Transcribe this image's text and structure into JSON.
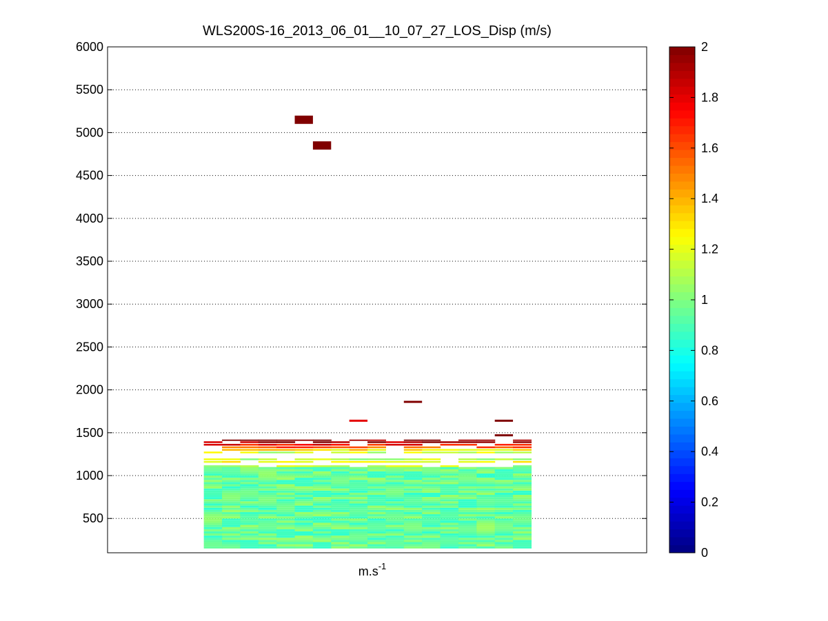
{
  "chart_data": {
    "type": "heatmap",
    "title": "WLS200S-16_2013_06_01__10_07_27_LOS_Disp (m/s)",
    "xlabel": "m.s",
    "xlabel_superscript": "-1",
    "ylabel": "",
    "ylim": [
      100,
      6000
    ],
    "yticks": [
      500,
      1000,
      1500,
      2000,
      2500,
      3000,
      3500,
      4000,
      4500,
      5000,
      5500,
      6000
    ],
    "ygrid": true,
    "xticks": [],
    "colormap": "jet",
    "colorbar": {
      "clim": [
        0,
        2
      ],
      "ticks": [
        0,
        0.2,
        0.4,
        0.6,
        0.8,
        1,
        1.2,
        1.4,
        1.6,
        1.8,
        2
      ],
      "position": "right"
    },
    "columns": 18,
    "column_x_range": [
      5,
      22
    ],
    "x_axis_range": [
      0,
      28
    ],
    "block_rows": [
      {
        "alt": [
          150,
          1100
        ],
        "value": 0.95,
        "note": "dense low-altitude block, values ~0.85-1.05"
      },
      {
        "alt": [
          1100,
          1120
        ],
        "value": 1.1
      },
      {
        "alt": [
          1150,
          1170
        ],
        "value": 1.25
      },
      {
        "alt": [
          1180,
          1200
        ],
        "value": 1.1
      },
      {
        "alt": [
          1260,
          1280
        ],
        "value": 1.15
      },
      {
        "alt": [
          1290,
          1310
        ],
        "value": 1.3
      },
      {
        "alt": [
          1320,
          1340
        ],
        "value": 1.6
      },
      {
        "alt": [
          1350,
          1370
        ],
        "value": 1.75
      },
      {
        "alt": [
          1380,
          1400
        ],
        "value": 1.9
      },
      {
        "alt": [
          1405,
          1420
        ],
        "value": 2.0
      }
    ],
    "isolated_points": [
      {
        "col": 5,
        "alt": 5150,
        "value": 2.0
      },
      {
        "col": 6,
        "alt": 4850,
        "value": 2.0
      },
      {
        "col": 8,
        "alt": 1640,
        "value": 1.8
      },
      {
        "col": 11,
        "alt": 1860,
        "value": 2.0
      },
      {
        "col": 16,
        "alt": 1640,
        "value": 2.0
      },
      {
        "col": 16,
        "alt": 1470,
        "value": 2.0
      }
    ]
  }
}
